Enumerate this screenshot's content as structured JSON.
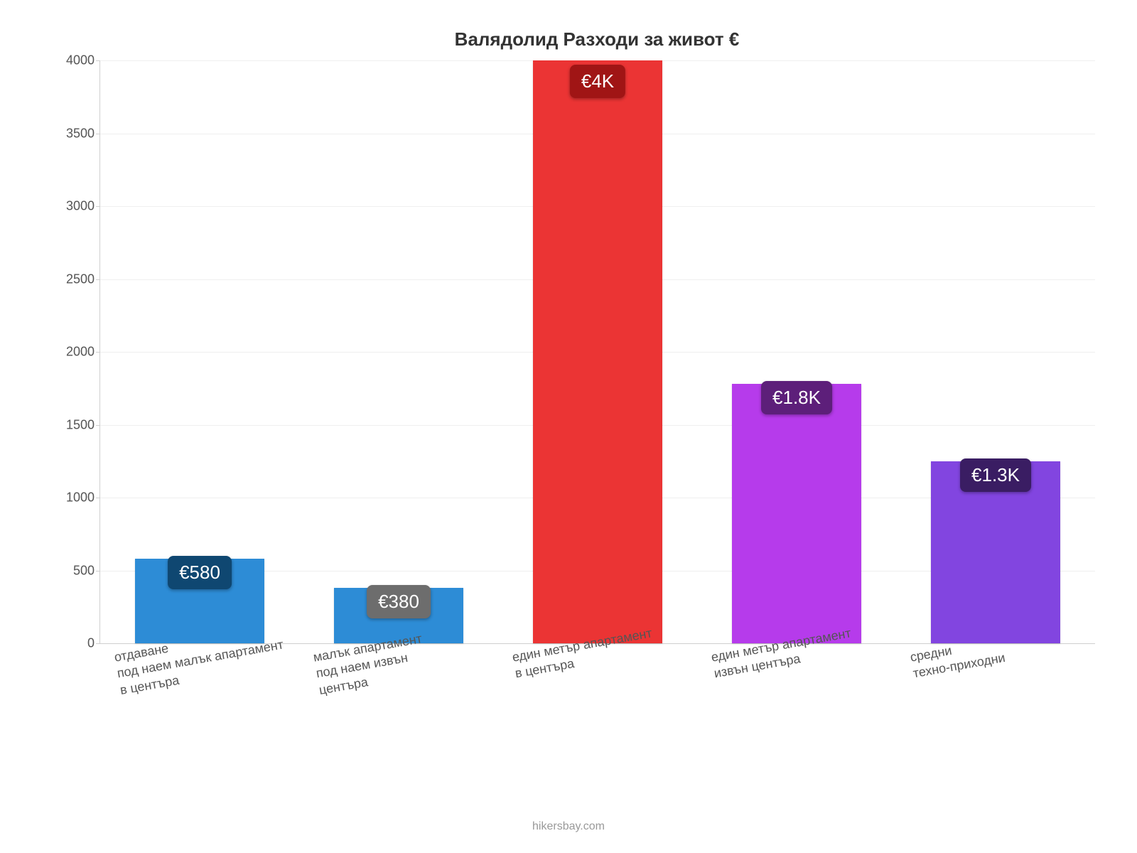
{
  "chart": {
    "type": "bar",
    "title": "Валядолид Разходи за живот €",
    "title_fontsize": 26,
    "title_color": "#333333",
    "background_color": "#ffffff",
    "grid_color": "#efefef",
    "axis_color": "#cfcfcf",
    "tick_font_color": "#555555",
    "tick_fontsize": 18,
    "xlabel_fontsize": 18,
    "ylim_min": 0,
    "ylim_max": 4000,
    "ytick_step": 500,
    "yticks": [
      "0",
      "500",
      "1000",
      "1500",
      "2000",
      "2500",
      "3000",
      "3500",
      "4000"
    ],
    "bar_width_ratio": 0.65,
    "value_label_fontsize": 26,
    "value_label_text_color": "#ffffff",
    "credit": "hikersbay.com",
    "credit_fontsize": 16,
    "credit_color": "#999999",
    "categories": [
      {
        "label_lines": [
          "отдаване",
          "под наем малък апартамент",
          "в центъра"
        ],
        "value": 580,
        "display_value": "€580",
        "bar_color": "#2d8cd6",
        "label_bg": "#0f4771"
      },
      {
        "label_lines": [
          "малък апартамент",
          "под наем извън",
          "центъра"
        ],
        "value": 380,
        "display_value": "€380",
        "bar_color": "#2d8cd6",
        "label_bg": "#6d6d6d"
      },
      {
        "label_lines": [
          "един метър апартамент",
          "в центъра"
        ],
        "value": 4000,
        "display_value": "€4K",
        "bar_color": "#eb3434",
        "label_bg": "#a01515"
      },
      {
        "label_lines": [
          "един метър апартамент",
          "извън центъра"
        ],
        "value": 1780,
        "display_value": "€1.8K",
        "bar_color": "#b63beb",
        "label_bg": "#5d1f7a"
      },
      {
        "label_lines": [
          "средни",
          "техно-приходни"
        ],
        "value": 1250,
        "display_value": "€1.3K",
        "bar_color": "#8245e0",
        "label_bg": "#3a1d63"
      }
    ]
  }
}
